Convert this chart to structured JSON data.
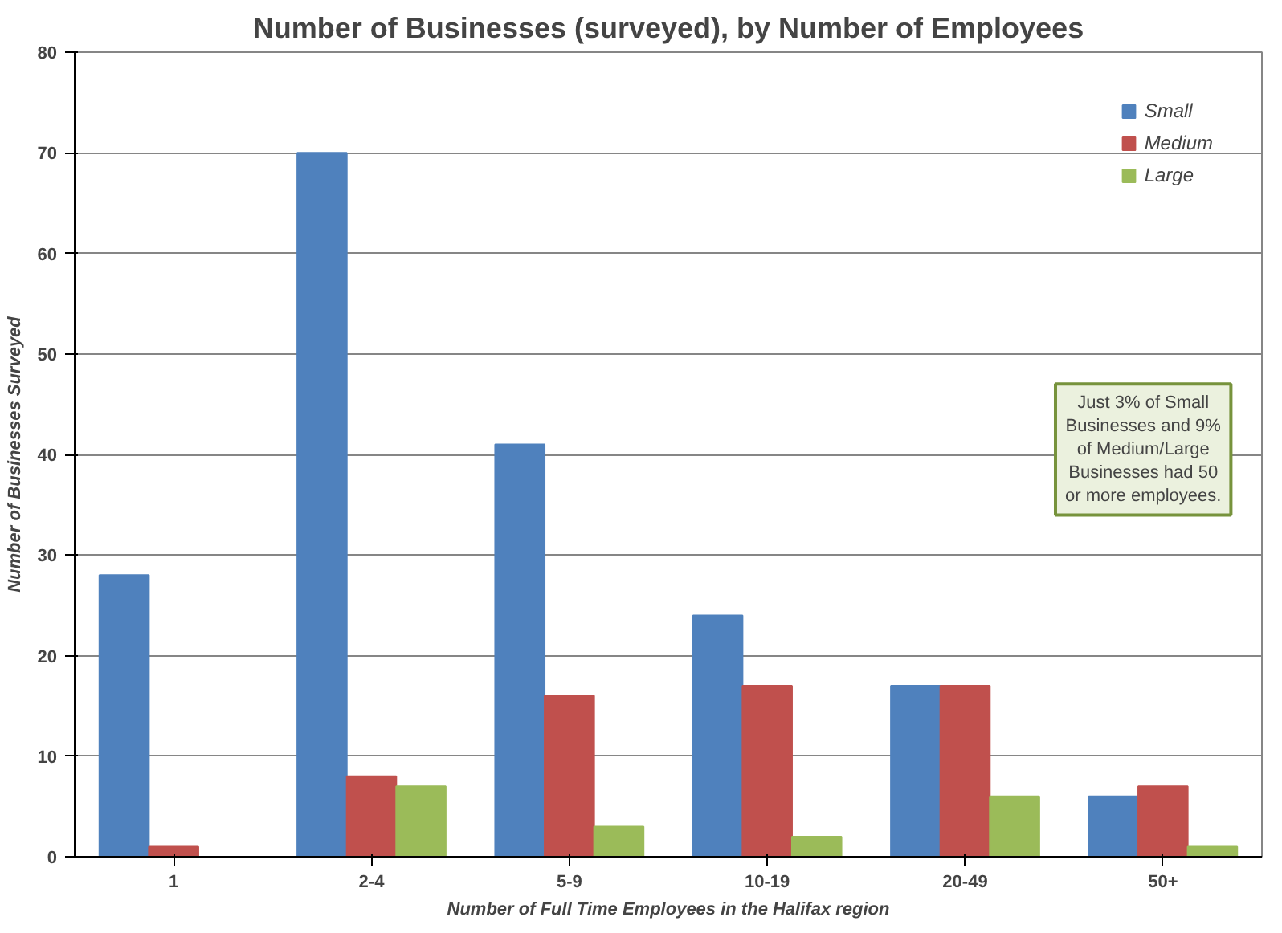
{
  "chart_data": {
    "type": "bar",
    "title": "Number of Businesses (surveyed), by Number of Employees",
    "xlabel": "Number of Full Time Employees in the Halifax region",
    "ylabel": "Number of Businesses Surveyed",
    "categories": [
      "1",
      "2-4",
      "5-9",
      "10-19",
      "20-49",
      "50+"
    ],
    "series": [
      {
        "name": "Small",
        "color": "#4f81bd",
        "values": [
          28,
          70,
          41,
          24,
          17,
          6
        ]
      },
      {
        "name": "Medium",
        "color": "#c0504d",
        "values": [
          1,
          8,
          16,
          17,
          17,
          7
        ]
      },
      {
        "name": "Large",
        "color": "#9bbb59",
        "values": [
          0,
          7,
          3,
          2,
          6,
          1
        ]
      }
    ],
    "ylim": [
      0,
      80
    ],
    "yticks": [
      0,
      10,
      20,
      30,
      40,
      50,
      60,
      70,
      80
    ],
    "grid": "y",
    "legend": "top right",
    "annotations": [
      "Just 3% of Small Businesses and 9% of Medium/Large Businesses had 50 or more employees."
    ]
  }
}
